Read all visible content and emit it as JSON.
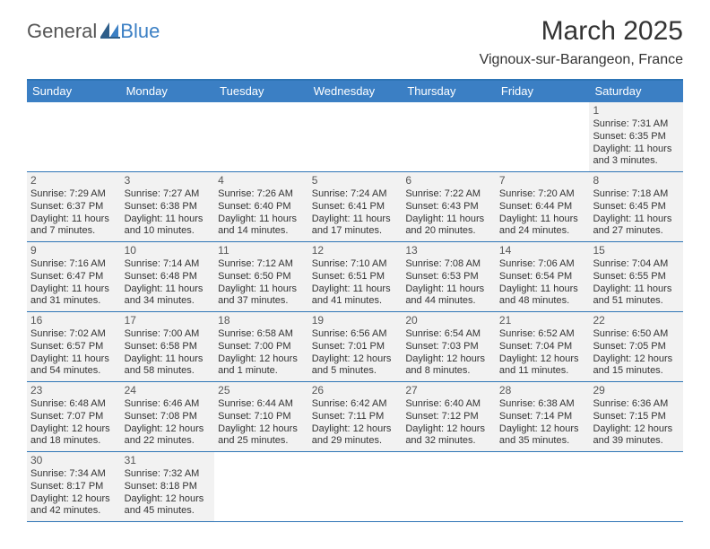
{
  "logo": {
    "text1": "General",
    "text2": "Blue"
  },
  "title": {
    "month": "March 2025",
    "location": "Vignoux-sur-Barangeon, France"
  },
  "colors": {
    "header_bg": "#3b7fc4",
    "header_border": "#2e75b6",
    "row_border": "#2e75b6",
    "day_fill": "#f2f2f2",
    "day_text": "#333333",
    "daynum_text": "#555555",
    "logo_gray": "#555555",
    "logo_blue": "#3b7fc4"
  },
  "days_of_week": [
    "Sunday",
    "Monday",
    "Tuesday",
    "Wednesday",
    "Thursday",
    "Friday",
    "Saturday"
  ],
  "weeks": [
    [
      null,
      null,
      null,
      null,
      null,
      null,
      {
        "n": "1",
        "sunrise": "Sunrise: 7:31 AM",
        "sunset": "Sunset: 6:35 PM",
        "day1": "Daylight: 11 hours",
        "day2": "and 3 minutes."
      }
    ],
    [
      {
        "n": "2",
        "sunrise": "Sunrise: 7:29 AM",
        "sunset": "Sunset: 6:37 PM",
        "day1": "Daylight: 11 hours",
        "day2": "and 7 minutes."
      },
      {
        "n": "3",
        "sunrise": "Sunrise: 7:27 AM",
        "sunset": "Sunset: 6:38 PM",
        "day1": "Daylight: 11 hours",
        "day2": "and 10 minutes."
      },
      {
        "n": "4",
        "sunrise": "Sunrise: 7:26 AM",
        "sunset": "Sunset: 6:40 PM",
        "day1": "Daylight: 11 hours",
        "day2": "and 14 minutes."
      },
      {
        "n": "5",
        "sunrise": "Sunrise: 7:24 AM",
        "sunset": "Sunset: 6:41 PM",
        "day1": "Daylight: 11 hours",
        "day2": "and 17 minutes."
      },
      {
        "n": "6",
        "sunrise": "Sunrise: 7:22 AM",
        "sunset": "Sunset: 6:43 PM",
        "day1": "Daylight: 11 hours",
        "day2": "and 20 minutes."
      },
      {
        "n": "7",
        "sunrise": "Sunrise: 7:20 AM",
        "sunset": "Sunset: 6:44 PM",
        "day1": "Daylight: 11 hours",
        "day2": "and 24 minutes."
      },
      {
        "n": "8",
        "sunrise": "Sunrise: 7:18 AM",
        "sunset": "Sunset: 6:45 PM",
        "day1": "Daylight: 11 hours",
        "day2": "and 27 minutes."
      }
    ],
    [
      {
        "n": "9",
        "sunrise": "Sunrise: 7:16 AM",
        "sunset": "Sunset: 6:47 PM",
        "day1": "Daylight: 11 hours",
        "day2": "and 31 minutes."
      },
      {
        "n": "10",
        "sunrise": "Sunrise: 7:14 AM",
        "sunset": "Sunset: 6:48 PM",
        "day1": "Daylight: 11 hours",
        "day2": "and 34 minutes."
      },
      {
        "n": "11",
        "sunrise": "Sunrise: 7:12 AM",
        "sunset": "Sunset: 6:50 PM",
        "day1": "Daylight: 11 hours",
        "day2": "and 37 minutes."
      },
      {
        "n": "12",
        "sunrise": "Sunrise: 7:10 AM",
        "sunset": "Sunset: 6:51 PM",
        "day1": "Daylight: 11 hours",
        "day2": "and 41 minutes."
      },
      {
        "n": "13",
        "sunrise": "Sunrise: 7:08 AM",
        "sunset": "Sunset: 6:53 PM",
        "day1": "Daylight: 11 hours",
        "day2": "and 44 minutes."
      },
      {
        "n": "14",
        "sunrise": "Sunrise: 7:06 AM",
        "sunset": "Sunset: 6:54 PM",
        "day1": "Daylight: 11 hours",
        "day2": "and 48 minutes."
      },
      {
        "n": "15",
        "sunrise": "Sunrise: 7:04 AM",
        "sunset": "Sunset: 6:55 PM",
        "day1": "Daylight: 11 hours",
        "day2": "and 51 minutes."
      }
    ],
    [
      {
        "n": "16",
        "sunrise": "Sunrise: 7:02 AM",
        "sunset": "Sunset: 6:57 PM",
        "day1": "Daylight: 11 hours",
        "day2": "and 54 minutes."
      },
      {
        "n": "17",
        "sunrise": "Sunrise: 7:00 AM",
        "sunset": "Sunset: 6:58 PM",
        "day1": "Daylight: 11 hours",
        "day2": "and 58 minutes."
      },
      {
        "n": "18",
        "sunrise": "Sunrise: 6:58 AM",
        "sunset": "Sunset: 7:00 PM",
        "day1": "Daylight: 12 hours",
        "day2": "and 1 minute."
      },
      {
        "n": "19",
        "sunrise": "Sunrise: 6:56 AM",
        "sunset": "Sunset: 7:01 PM",
        "day1": "Daylight: 12 hours",
        "day2": "and 5 minutes."
      },
      {
        "n": "20",
        "sunrise": "Sunrise: 6:54 AM",
        "sunset": "Sunset: 7:03 PM",
        "day1": "Daylight: 12 hours",
        "day2": "and 8 minutes."
      },
      {
        "n": "21",
        "sunrise": "Sunrise: 6:52 AM",
        "sunset": "Sunset: 7:04 PM",
        "day1": "Daylight: 12 hours",
        "day2": "and 11 minutes."
      },
      {
        "n": "22",
        "sunrise": "Sunrise: 6:50 AM",
        "sunset": "Sunset: 7:05 PM",
        "day1": "Daylight: 12 hours",
        "day2": "and 15 minutes."
      }
    ],
    [
      {
        "n": "23",
        "sunrise": "Sunrise: 6:48 AM",
        "sunset": "Sunset: 7:07 PM",
        "day1": "Daylight: 12 hours",
        "day2": "and 18 minutes."
      },
      {
        "n": "24",
        "sunrise": "Sunrise: 6:46 AM",
        "sunset": "Sunset: 7:08 PM",
        "day1": "Daylight: 12 hours",
        "day2": "and 22 minutes."
      },
      {
        "n": "25",
        "sunrise": "Sunrise: 6:44 AM",
        "sunset": "Sunset: 7:10 PM",
        "day1": "Daylight: 12 hours",
        "day2": "and 25 minutes."
      },
      {
        "n": "26",
        "sunrise": "Sunrise: 6:42 AM",
        "sunset": "Sunset: 7:11 PM",
        "day1": "Daylight: 12 hours",
        "day2": "and 29 minutes."
      },
      {
        "n": "27",
        "sunrise": "Sunrise: 6:40 AM",
        "sunset": "Sunset: 7:12 PM",
        "day1": "Daylight: 12 hours",
        "day2": "and 32 minutes."
      },
      {
        "n": "28",
        "sunrise": "Sunrise: 6:38 AM",
        "sunset": "Sunset: 7:14 PM",
        "day1": "Daylight: 12 hours",
        "day2": "and 35 minutes."
      },
      {
        "n": "29",
        "sunrise": "Sunrise: 6:36 AM",
        "sunset": "Sunset: 7:15 PM",
        "day1": "Daylight: 12 hours",
        "day2": "and 39 minutes."
      }
    ],
    [
      {
        "n": "30",
        "sunrise": "Sunrise: 7:34 AM",
        "sunset": "Sunset: 8:17 PM",
        "day1": "Daylight: 12 hours",
        "day2": "and 42 minutes."
      },
      {
        "n": "31",
        "sunrise": "Sunrise: 7:32 AM",
        "sunset": "Sunset: 8:18 PM",
        "day1": "Daylight: 12 hours",
        "day2": "and 45 minutes."
      },
      null,
      null,
      null,
      null,
      null
    ]
  ]
}
